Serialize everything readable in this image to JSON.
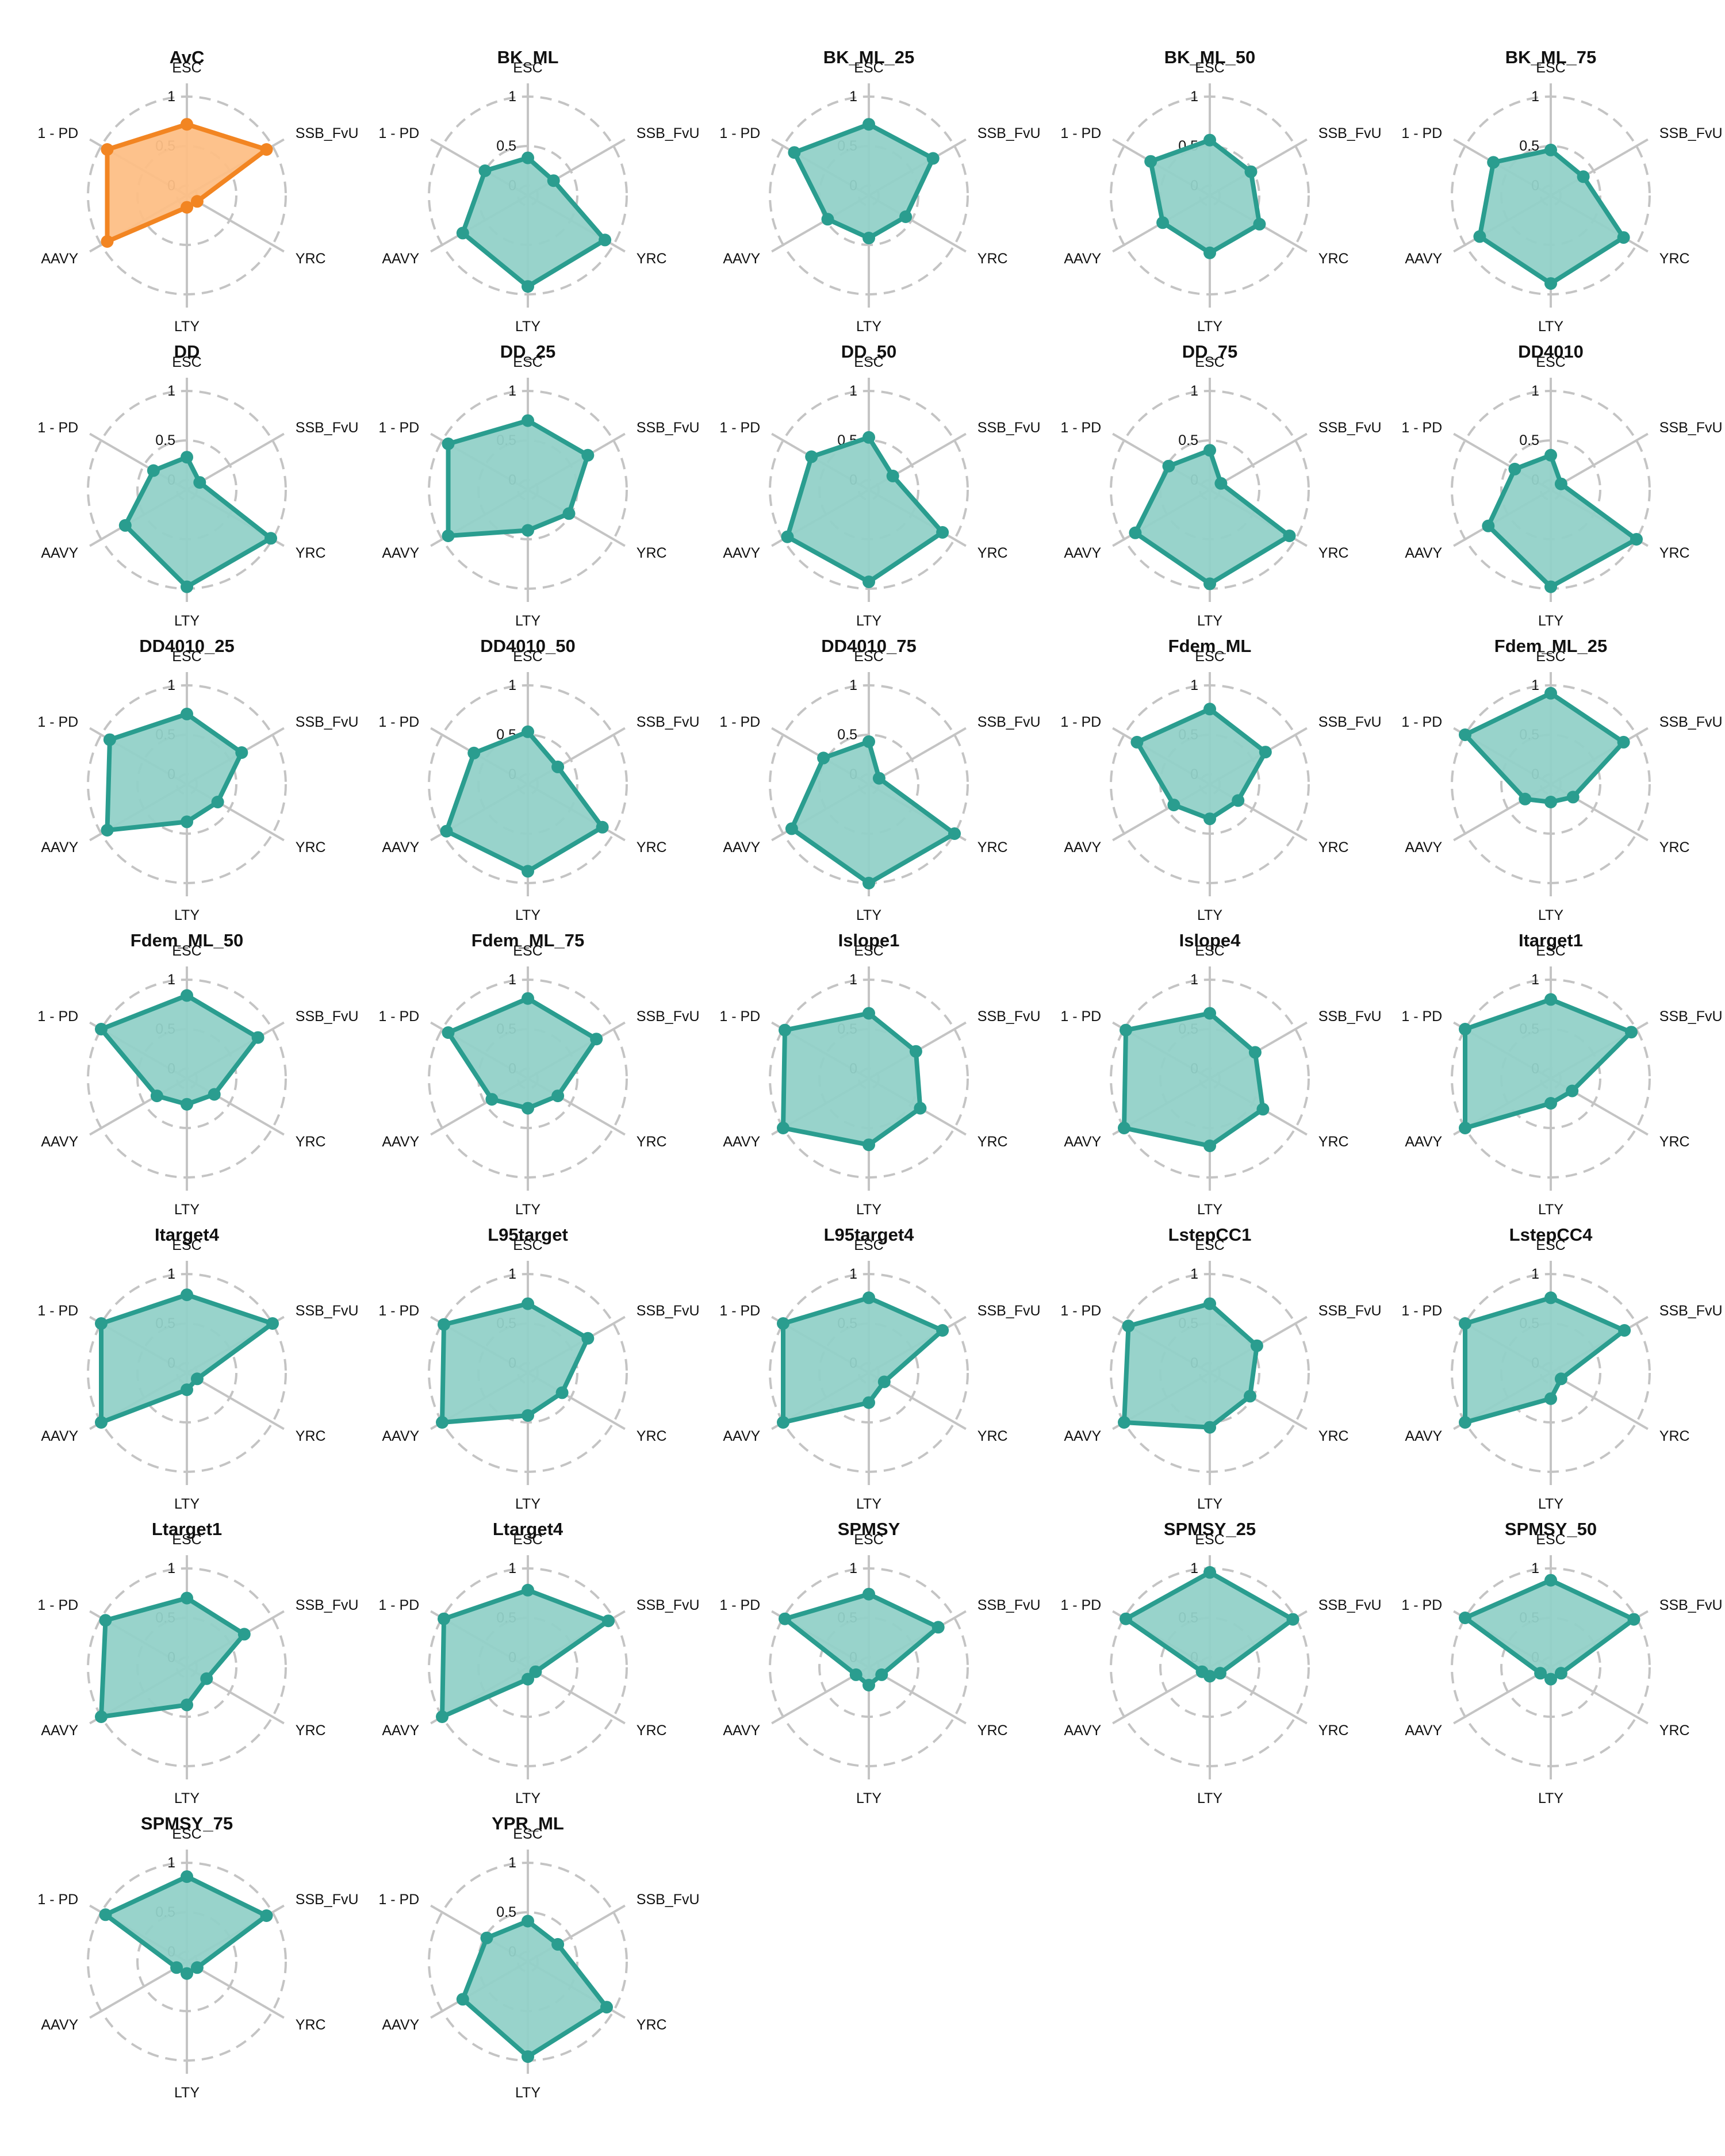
{
  "chart_data": {
    "type": "radar",
    "axes": [
      "ESC",
      "SSB_FvU",
      "YRC",
      "LTY",
      "AAVY",
      "1 - PD"
    ],
    "range": [
      0,
      1
    ],
    "ring_ticks": [
      "0",
      "0.5",
      "1"
    ],
    "colors": {
      "reference": "#f28522",
      "reference_fill": "#fdbf86",
      "default": "#2a9d8f",
      "default_fill": "#92d1c8"
    },
    "panels": [
      {
        "name": "AvC",
        "values": [
          0.72,
          0.93,
          0.12,
          0.12,
          0.93,
          0.93
        ],
        "highlight": true
      },
      {
        "name": "BK_ML",
        "values": [
          0.38,
          0.3,
          0.9,
          0.92,
          0.76,
          0.5
        ]
      },
      {
        "name": "BK_ML_25",
        "values": [
          0.72,
          0.75,
          0.43,
          0.43,
          0.48,
          0.87
        ]
      },
      {
        "name": "BK_ML_50",
        "values": [
          0.56,
          0.48,
          0.58,
          0.58,
          0.55,
          0.69
        ]
      },
      {
        "name": "BK_ML_75",
        "values": [
          0.46,
          0.38,
          0.85,
          0.89,
          0.83,
          0.67
        ]
      },
      {
        "name": "DD",
        "values": [
          0.33,
          0.15,
          0.98,
          0.98,
          0.72,
          0.39
        ]
      },
      {
        "name": "DD_25",
        "values": [
          0.7,
          0.7,
          0.48,
          0.41,
          0.93,
          0.93
        ]
      },
      {
        "name": "DD_50",
        "values": [
          0.53,
          0.28,
          0.86,
          0.93,
          0.95,
          0.67
        ]
      },
      {
        "name": "DD_75",
        "values": [
          0.4,
          0.13,
          0.93,
          0.95,
          0.87,
          0.48
        ]
      },
      {
        "name": "DD4010",
        "values": [
          0.35,
          0.12,
          1.0,
          0.98,
          0.73,
          0.42
        ]
      },
      {
        "name": "DD4010_25",
        "values": [
          0.71,
          0.64,
          0.36,
          0.38,
          0.93,
          0.9
        ]
      },
      {
        "name": "DD4010_50",
        "values": [
          0.53,
          0.35,
          0.87,
          0.88,
          0.95,
          0.63
        ]
      },
      {
        "name": "DD4010_75",
        "values": [
          0.43,
          0.12,
          1.0,
          1.0,
          0.9,
          0.53
        ]
      },
      {
        "name": "Fdem_ML",
        "values": [
          0.76,
          0.65,
          0.33,
          0.35,
          0.42,
          0.85
        ]
      },
      {
        "name": "Fdem_ML_25",
        "values": [
          0.92,
          0.85,
          0.26,
          0.18,
          0.3,
          1.0
        ]
      },
      {
        "name": "Fdem_ML_50",
        "values": [
          0.84,
          0.83,
          0.32,
          0.26,
          0.35,
          1.0
        ]
      },
      {
        "name": "Fdem_ML_75",
        "values": [
          0.81,
          0.8,
          0.35,
          0.3,
          0.42,
          0.93
        ]
      },
      {
        "name": "Islope1",
        "values": [
          0.66,
          0.55,
          0.6,
          0.67,
          1.0,
          0.98
        ]
      },
      {
        "name": "Islope4",
        "values": [
          0.66,
          0.53,
          0.62,
          0.68,
          1.0,
          0.98
        ]
      },
      {
        "name": "Itarget1",
        "values": [
          0.8,
          0.94,
          0.25,
          0.25,
          1.0,
          1.0
        ]
      },
      {
        "name": "Itarget4",
        "values": [
          0.79,
          1.0,
          0.12,
          0.17,
          1.0,
          1.0
        ]
      },
      {
        "name": "L95target",
        "values": [
          0.7,
          0.7,
          0.4,
          0.43,
          1.0,
          0.98
        ]
      },
      {
        "name": "L95target4",
        "values": [
          0.76,
          0.86,
          0.18,
          0.3,
          1.0,
          1.0
        ]
      },
      {
        "name": "LstepCC1",
        "values": [
          0.7,
          0.55,
          0.47,
          0.55,
          1.0,
          0.95
        ]
      },
      {
        "name": "LstepCC4",
        "values": [
          0.76,
          0.86,
          0.12,
          0.26,
          1.0,
          1.0
        ]
      },
      {
        "name": "Ltarget1",
        "values": [
          0.7,
          0.67,
          0.23,
          0.38,
          1.0,
          0.95
        ]
      },
      {
        "name": "Ltarget4",
        "values": [
          0.78,
          0.94,
          0.09,
          0.12,
          1.0,
          0.98
        ]
      },
      {
        "name": "SPMSY",
        "values": [
          0.74,
          0.81,
          0.15,
          0.18,
          0.15,
          0.98
        ]
      },
      {
        "name": "SPMSY_25",
        "values": [
          0.96,
          0.97,
          0.12,
          0.09,
          0.09,
          0.98
        ]
      },
      {
        "name": "SPMSY_50",
        "values": [
          0.88,
          0.97,
          0.12,
          0.12,
          0.12,
          1.0
        ]
      },
      {
        "name": "SPMSY_75",
        "values": [
          0.86,
          0.93,
          0.12,
          0.12,
          0.12,
          0.95
        ]
      },
      {
        "name": "YPR_ML",
        "values": [
          0.41,
          0.35,
          0.92,
          0.96,
          0.76,
          0.48
        ]
      }
    ]
  }
}
